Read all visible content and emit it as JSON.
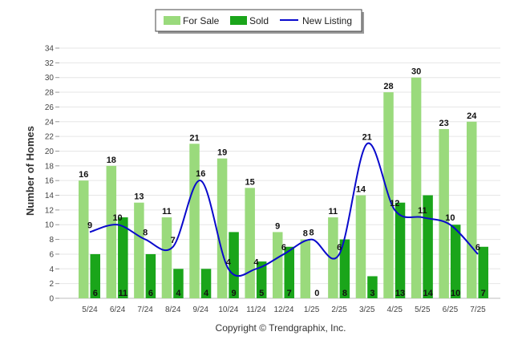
{
  "chart_data": {
    "type": "bar",
    "categories": [
      "5/24",
      "6/24",
      "7/24",
      "8/24",
      "9/24",
      "10/24",
      "11/24",
      "12/24",
      "1/25",
      "2/25",
      "3/25",
      "4/25",
      "5/25",
      "6/25",
      "7/25"
    ],
    "series": [
      {
        "name": "For Sale",
        "kind": "bar",
        "color": "#9ada7c",
        "values": [
          16,
          18,
          13,
          11,
          21,
          19,
          15,
          9,
          8,
          11,
          14,
          28,
          30,
          23,
          24
        ]
      },
      {
        "name": "Sold",
        "kind": "bar",
        "color": "#1aa51a",
        "values": [
          6,
          11,
          6,
          4,
          4,
          9,
          5,
          7,
          0,
          8,
          3,
          13,
          14,
          10,
          7
        ]
      },
      {
        "name": "New Listing",
        "kind": "line",
        "color": "#0a0acc",
        "values": [
          9,
          10,
          8,
          7,
          16,
          4,
          4,
          6,
          8,
          6,
          21,
          12,
          11,
          10,
          6
        ]
      }
    ],
    "ylabel": "Number of Homes",
    "ylim": [
      0,
      34
    ],
    "yticks": [
      0,
      2,
      4,
      6,
      8,
      10,
      12,
      14,
      16,
      18,
      20,
      22,
      24,
      26,
      28,
      30,
      32,
      34
    ],
    "grid": true,
    "legend": "top-center"
  },
  "footer": {
    "copyright": "Copyright © Trendgraphix, Inc."
  }
}
